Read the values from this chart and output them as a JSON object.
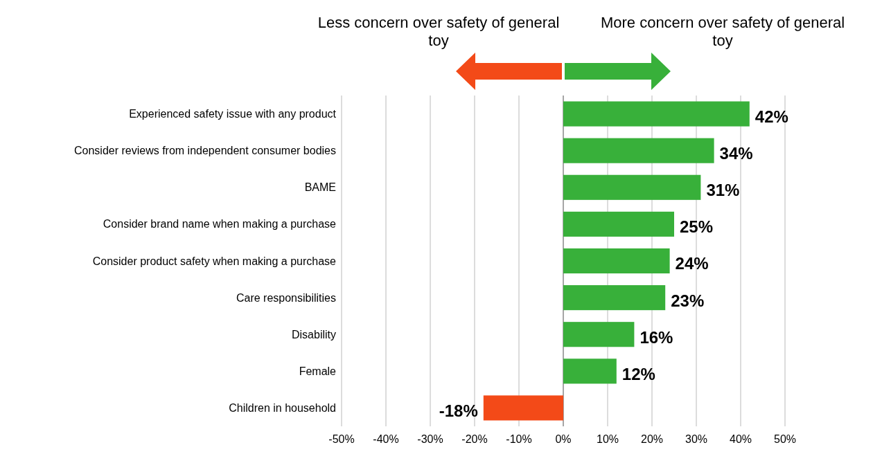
{
  "chart_data": {
    "type": "bar",
    "orientation": "horizontal",
    "categories": [
      "Experienced safety issue with any product",
      "Consider reviews from independent consumer bodies",
      "BAME",
      "Consider brand name when making a purchase",
      "Consider product safety when making a purchase",
      "Care responsibilities",
      "Disability",
      "Female",
      "Children in household"
    ],
    "values": [
      42,
      34,
      31,
      25,
      24,
      23,
      16,
      12,
      -18
    ],
    "colors": [
      "#38b03a",
      "#38b03a",
      "#38b03a",
      "#38b03a",
      "#38b03a",
      "#38b03a",
      "#38b03a",
      "#38b03a",
      "#f34a18"
    ],
    "value_labels": [
      "42%",
      "34%",
      "31%",
      "25%",
      "24%",
      "23%",
      "16%",
      "12%",
      "-18%"
    ],
    "xlim": [
      -50,
      50
    ],
    "xticks": [
      {
        "value": -50,
        "label": "-50%"
      },
      {
        "value": -40,
        "label": "-40%"
      },
      {
        "value": -30,
        "label": "-30%"
      },
      {
        "value": -20,
        "label": "-20%"
      },
      {
        "value": -10,
        "label": "-10%"
      },
      {
        "value": 0,
        "label": "0%"
      },
      {
        "value": 10,
        "label": "10%"
      },
      {
        "value": 20,
        "label": "20%"
      },
      {
        "value": 30,
        "label": "30%"
      },
      {
        "value": 40,
        "label": "40%"
      },
      {
        "value": 50,
        "label": "50%"
      }
    ],
    "grid": "x",
    "annotations": [
      "Less concern over safety of general toy",
      "More concern over safety of general toy"
    ]
  }
}
